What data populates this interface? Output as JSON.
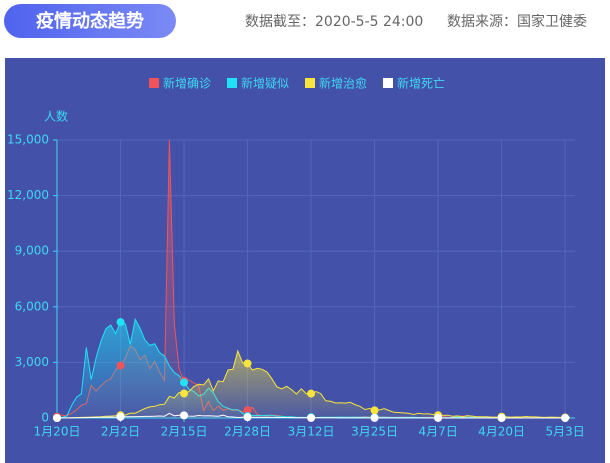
{
  "chart_data": {
    "type": "line",
    "title": "疫情动态趋势",
    "update_note": "数据截至：2020-5-5 24:00",
    "source_note": "数据来源：国家卫健委",
    "y_label": "人数",
    "categories": [
      "1月20日",
      null,
      null,
      null,
      null,
      null,
      null,
      null,
      null,
      null,
      null,
      null,
      null,
      "2月2日",
      null,
      null,
      null,
      null,
      null,
      null,
      null,
      null,
      null,
      null,
      null,
      null,
      "2月15日",
      null,
      null,
      null,
      null,
      null,
      null,
      null,
      null,
      null,
      null,
      null,
      null,
      "2月28日",
      null,
      null,
      null,
      null,
      null,
      null,
      null,
      null,
      null,
      null,
      null,
      null,
      "3月12日",
      null,
      null,
      null,
      null,
      null,
      null,
      null,
      null,
      null,
      null,
      null,
      null,
      "3月25日",
      null,
      null,
      null,
      null,
      null,
      null,
      null,
      null,
      null,
      null,
      null,
      null,
      "4月7日",
      null,
      null,
      null,
      null,
      null,
      null,
      null,
      null,
      null,
      null,
      null,
      null,
      "4月20日",
      null,
      null,
      null,
      null,
      null,
      null,
      null,
      null,
      null,
      null,
      null,
      null,
      "5月3日",
      null
    ],
    "series": [
      {
        "name": "新增确诊",
        "color": "#f0545a",
        "area": true,
        "values": [
          77,
          149,
          131,
          259,
          444,
          688,
          769,
          1771,
          1459,
          1737,
          1982,
          2102,
          2590,
          2829,
          3235,
          3887,
          3694,
          3143,
          3399,
          2656,
          3062,
          2478,
          2015,
          15000,
          5090,
          2641,
          2009,
          2048,
          1886,
          1749,
          394,
          889,
          397,
          648,
          409,
          508,
          406,
          433,
          327,
          427,
          573,
          202,
          125,
          119,
          139,
          143,
          99,
          44,
          40,
          19,
          24,
          15,
          8,
          11,
          20,
          16,
          21,
          13,
          34,
          39,
          41,
          46,
          39,
          78,
          47,
          67,
          55,
          54,
          45,
          31,
          48,
          36,
          35,
          31,
          19,
          30,
          39,
          32,
          62,
          63,
          42,
          46,
          99,
          108,
          89,
          46,
          46,
          26,
          27,
          16,
          12,
          11,
          30,
          10,
          10,
          12,
          11,
          3,
          6,
          22,
          4,
          12,
          2,
          1,
          3,
          3
        ]
      },
      {
        "name": "新增疑似",
        "color": "#1ee3f7",
        "area": true,
        "values": [
          0,
          27,
          100,
          680,
          1118,
          1309,
          3806,
          2077,
          3248,
          4148,
          4812,
          5019,
          4562,
          5173,
          5072,
          3971,
          5328,
          4833,
          4214,
          3916,
          4008,
          3536,
          3342,
          2807,
          2450,
          2277,
          1918,
          1563,
          1432,
          1185,
          1277,
          1614,
          1361,
          882,
          620,
          530,
          439,
          452,
          248,
          100,
          132,
          141,
          129,
          143,
          143,
          102,
          99,
          60,
          63,
          36,
          31,
          33,
          45,
          17,
          39,
          41,
          45,
          44,
          47,
          40,
          39,
          47,
          44,
          48,
          45,
          52,
          41,
          38,
          35,
          28,
          30,
          32,
          30,
          36,
          25,
          24,
          20,
          20,
          18,
          15,
          20,
          25,
          60,
          50,
          40,
          38,
          30,
          25,
          21,
          18,
          15,
          12,
          10,
          12,
          9,
          8,
          7,
          6,
          8,
          5,
          6,
          5,
          4,
          3,
          3,
          2
        ]
      },
      {
        "name": "新增治愈",
        "color": "#f7e53d",
        "area": true,
        "values": [
          0,
          0,
          0,
          10,
          20,
          30,
          40,
          50,
          60,
          70,
          90,
          100,
          120,
          147,
          157,
          262,
          261,
          387,
          510,
          600,
          632,
          716,
          744,
          1171,
          1081,
          1373,
          1323,
          1425,
          1701,
          1824,
          1779,
          2109,
          1465,
          2004,
          1961,
          2592,
          2630,
          3622,
          2972,
          2944,
          2589,
          2682,
          2627,
          2484,
          2111,
          1681,
          1578,
          1712,
          1535,
          1297,
          1578,
          1318,
          1318,
          1430,
          1318,
          930,
          903,
          810,
          818,
          802,
          849,
          725,
          631,
          460,
          513,
          414,
          436,
          503,
          400,
          309,
          292,
          273,
          247,
          189,
          251,
          215,
          225,
          181,
          148,
          140,
          150,
          91,
          112,
          71,
          132,
          102,
          63,
          67,
          64,
          47,
          51,
          70,
          57,
          51,
          58,
          52,
          83,
          62,
          58,
          44,
          34,
          47,
          38,
          31,
          26,
          40
        ]
      },
      {
        "name": "新增死亡",
        "color": "#ffffff",
        "area": false,
        "values": [
          0,
          3,
          8,
          8,
          16,
          15,
          24,
          26,
          26,
          38,
          43,
          46,
          45,
          57,
          64,
          65,
          73,
          73,
          86,
          89,
          97,
          108,
          97,
          254,
          121,
          143,
          142,
          105,
          98,
          136,
          114,
          118,
          109,
          97,
          150,
          71,
          52,
          29,
          44,
          47,
          35,
          42,
          31,
          38,
          31,
          30,
          28,
          27,
          22,
          17,
          22,
          11,
          7,
          13,
          10,
          14,
          13,
          11,
          8,
          3,
          7,
          6,
          9,
          7,
          4,
          6,
          5,
          3,
          5,
          4,
          1,
          7,
          6,
          4,
          4,
          3,
          1,
          2,
          2,
          2,
          1,
          3,
          2,
          3,
          2,
          2,
          1,
          2,
          1,
          1,
          0,
          0,
          0,
          0,
          0,
          0,
          0,
          0,
          0,
          0,
          0,
          0,
          0,
          0,
          0,
          0
        ]
      }
    ],
    "ylim": [
      0,
      15000
    ],
    "yticks": [
      0,
      {
        "value": 3000,
        "label": "3,000"
      },
      {
        "value": 6000,
        "label": "6,000"
      },
      {
        "value": 9000,
        "label": "9,000"
      },
      {
        "value": 12000,
        "label": "12,000"
      },
      {
        "value": 15000,
        "label": "15,000"
      }
    ],
    "grid": true,
    "legend": "top"
  }
}
